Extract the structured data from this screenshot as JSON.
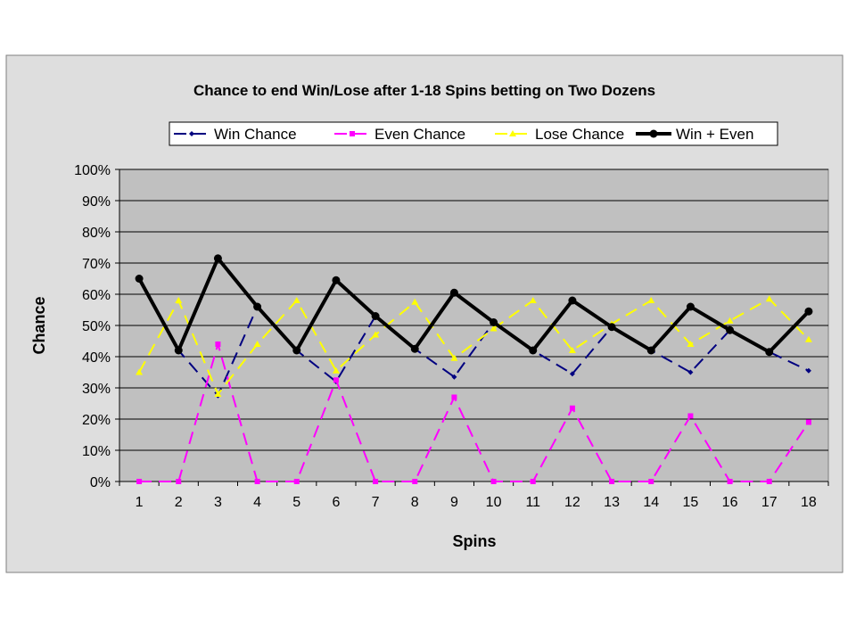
{
  "chart_data": {
    "type": "line",
    "title": "Chance to end Win/Lose after 1-18 Spins betting on Two Dozens",
    "xlabel": "Spins",
    "ylabel": "Chance",
    "categories": [
      "1",
      "2",
      "3",
      "4",
      "5",
      "6",
      "7",
      "8",
      "9",
      "10",
      "11",
      "12",
      "13",
      "14",
      "15",
      "16",
      "17",
      "18"
    ],
    "ylim": [
      0,
      100
    ],
    "yticks": [
      "0%",
      "10%",
      "20%",
      "30%",
      "40%",
      "50%",
      "60%",
      "70%",
      "80%",
      "90%",
      "100%"
    ],
    "grid": true,
    "legend_position": "top",
    "series": [
      {
        "name": "Win Chance",
        "color": "#000080",
        "dash": true,
        "marker": "diamond",
        "values": [
          65,
          42,
          27.5,
          56,
          42,
          32,
          53,
          42.5,
          33.5,
          51,
          42,
          34.5,
          49.5,
          42,
          35,
          48.5,
          41.5,
          35.5
        ]
      },
      {
        "name": "Even Chance",
        "color": "#ff00ff",
        "dash": true,
        "marker": "square",
        "values": [
          0,
          0,
          44,
          0,
          0,
          32.5,
          0,
          0,
          27,
          0,
          0,
          23.5,
          0,
          0,
          21,
          0,
          0,
          19
        ]
      },
      {
        "name": "Lose Chance",
        "color": "#ffff00",
        "dash": true,
        "marker": "triangle",
        "values": [
          35,
          58,
          28,
          44,
          58,
          35.5,
          47,
          57.5,
          39.5,
          49,
          58,
          42,
          50.5,
          58,
          44,
          51.5,
          58.5,
          45.5
        ]
      },
      {
        "name": "Win + Even",
        "color": "#000000",
        "dash": false,
        "marker": "circle",
        "values": [
          65,
          42,
          71.5,
          56,
          42,
          64.5,
          53,
          42.5,
          60.5,
          51,
          42,
          58,
          49.5,
          42,
          56,
          48.5,
          41.5,
          54.5
        ]
      }
    ]
  }
}
